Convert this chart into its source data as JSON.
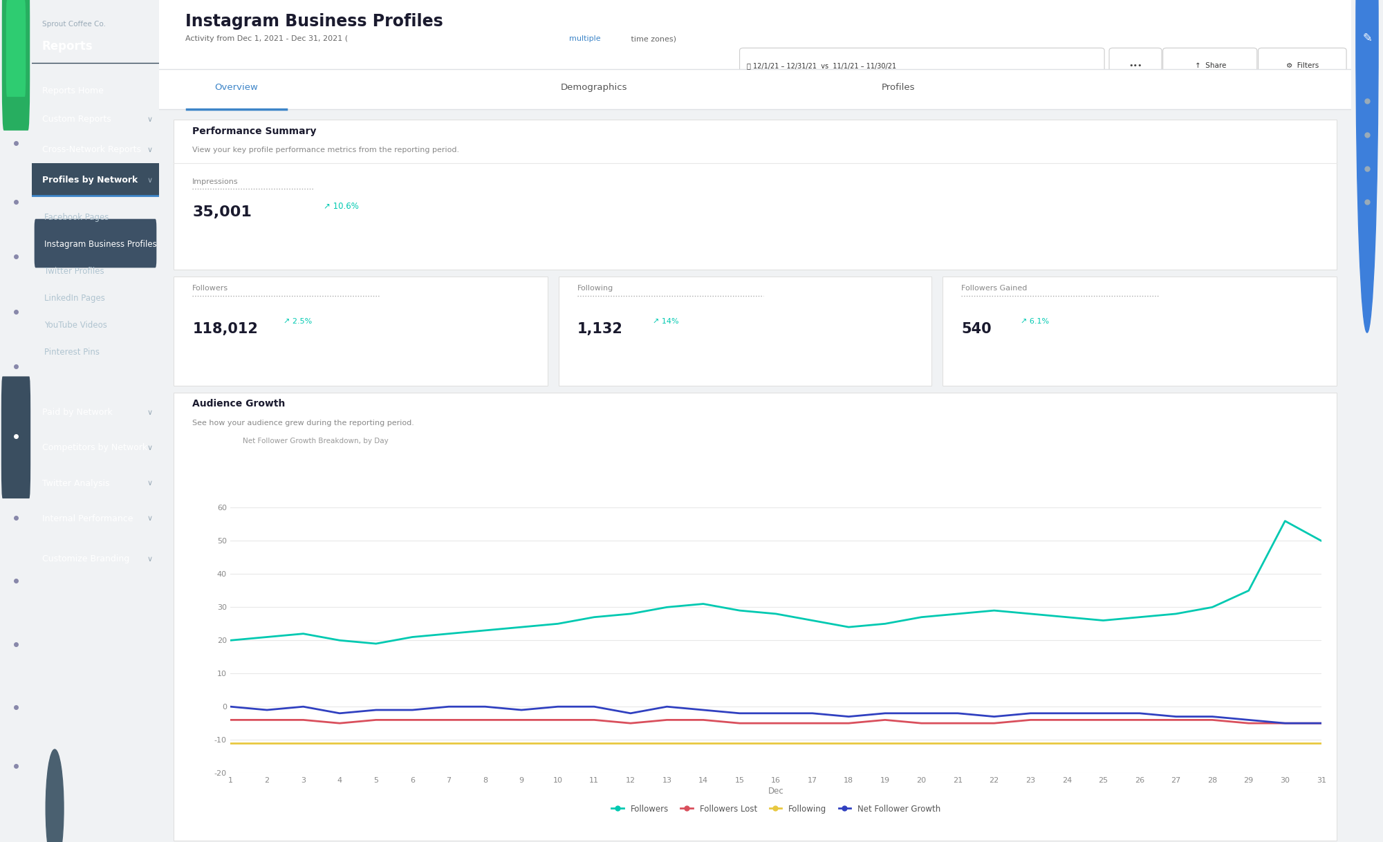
{
  "title": "Instagram Business Profiles",
  "subtitle_pre": "Activity from Dec 1, 2021 - Dec 31, 2021 (",
  "subtitle_link": "multiple",
  "subtitle_post": " time zones)",
  "sprout_name": "Sprout Coffee Co.",
  "reports_label": "Reports",
  "nav_items": [
    "Reports Home",
    "Custom Reports",
    "Cross-Network Reports",
    "Profiles by Network"
  ],
  "nav_has_chevron": [
    false,
    true,
    true,
    true
  ],
  "sub_nav_items": [
    "Facebook Pages",
    "Instagram Business Profiles",
    "Twitter Profiles",
    "LinkedIn Pages",
    "YouTube Videos",
    "Pinterest Pins"
  ],
  "bottom_nav_items": [
    "Paid by Network",
    "Competitors by Network",
    "Twitter Analysis",
    "Internal Performance",
    "Customize Branding"
  ],
  "tab_overview": "Overview",
  "tab_demographics": "Demographics",
  "tab_profiles": "Profiles",
  "perf_summary_title": "Performance Summary",
  "perf_summary_sub": "View your key profile performance metrics from the reporting period.",
  "impressions_label": "Impressions",
  "impressions_value": "35,001",
  "impressions_change": "10.6%",
  "followers_label": "Followers",
  "followers_value": "118,012",
  "followers_change": "2.5%",
  "following_label": "Following",
  "following_value": "1,132",
  "following_change": "14%",
  "followers_gained_label": "Followers Gained",
  "followers_gained_value": "540",
  "followers_gained_change": "6.1%",
  "audience_growth_title": "Audience Growth",
  "audience_growth_sub": "See how your audience grew during the reporting period.",
  "chart_label": "Net Follower Growth Breakdown, by Day",
  "date_range_text": "12/1/21 – 12/31/21  vs  11/1/21 – 11/30/21",
  "ylim": [
    -20,
    60
  ],
  "yticks": [
    -20,
    -10,
    0,
    10,
    20,
    30,
    40,
    50,
    60
  ],
  "xticks": [
    1,
    2,
    3,
    4,
    5,
    6,
    7,
    8,
    9,
    10,
    11,
    12,
    13,
    14,
    15,
    16,
    17,
    18,
    19,
    20,
    21,
    22,
    23,
    24,
    25,
    26,
    27,
    28,
    29,
    30,
    31
  ],
  "xlabel": "Dec",
  "teal_color": "#00c9b1",
  "blue_highlight": "#3d85c8",
  "line_followers": [
    20,
    21,
    22,
    20,
    19,
    21,
    22,
    23,
    24,
    25,
    27,
    28,
    30,
    31,
    29,
    28,
    26,
    24,
    25,
    27,
    28,
    29,
    28,
    27,
    26,
    27,
    28,
    30,
    35,
    56,
    50
  ],
  "line_followers_color": "#00c9b1",
  "line_following": [
    -11,
    -11,
    -11,
    -11,
    -11,
    -11,
    -11,
    -11,
    -11,
    -11,
    -11,
    -11,
    -11,
    -11,
    -11,
    -11,
    -11,
    -11,
    -11,
    -11,
    -11,
    -11,
    -11,
    -11,
    -11,
    -11,
    -11,
    -11,
    -11,
    -11,
    -11
  ],
  "line_following_color": "#e8c840",
  "line_followers_lost": [
    -4,
    -4,
    -4,
    -5,
    -4,
    -4,
    -4,
    -4,
    -4,
    -4,
    -4,
    -5,
    -4,
    -4,
    -5,
    -5,
    -5,
    -5,
    -4,
    -5,
    -5,
    -5,
    -4,
    -4,
    -4,
    -4,
    -4,
    -4,
    -5,
    -5,
    -5
  ],
  "line_followers_lost_color": "#d94f5c",
  "line_net": [
    0,
    -1,
    0,
    -2,
    -1,
    -1,
    0,
    0,
    -1,
    0,
    0,
    -2,
    0,
    -1,
    -2,
    -2,
    -2,
    -3,
    -2,
    -2,
    -2,
    -3,
    -2,
    -2,
    -2,
    -2,
    -3,
    -3,
    -4,
    -5,
    -5
  ],
  "line_net_color": "#3040c0",
  "legend_labels": [
    "Followers",
    "Followers Lost",
    "Following",
    "Net Follower Growth"
  ],
  "legend_colors": [
    "#00c9b1",
    "#d94f5c",
    "#e8c840",
    "#3040c0"
  ],
  "grid_color": "#e8e8e8",
  "text_dark": "#1a1a2e",
  "sidebar_icon_bg": "#1e2d38",
  "sidebar_nav_bg": "#263545",
  "main_bg": "#f0f2f4",
  "card_bg": "#ffffff",
  "active_item_bg": "#3a4e60",
  "active_sub_item_bg": "#3d5166"
}
